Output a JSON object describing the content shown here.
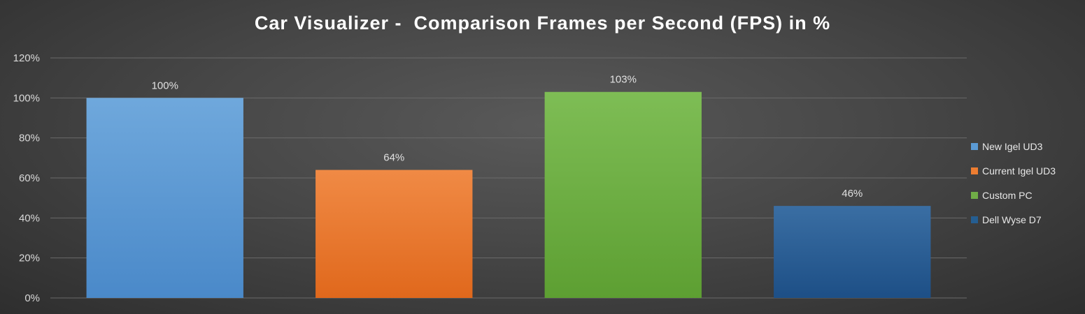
{
  "chart_data": {
    "type": "bar",
    "title": "Car Visualizer -  Comparison Frames per Second (FPS) in %",
    "xlabel": "",
    "ylabel": "",
    "ylim": [
      0,
      120
    ],
    "yticks": [
      0,
      20,
      40,
      60,
      80,
      100,
      120
    ],
    "ytick_labels": [
      "0%",
      "20%",
      "40%",
      "60%",
      "80%",
      "100%",
      "120%"
    ],
    "grid": true,
    "legend_position": "right",
    "series": [
      {
        "name": "New Igel UD3",
        "value": 100,
        "label": "100%",
        "color": "#5b9bd5"
      },
      {
        "name": "Current Igel UD3",
        "value": 64,
        "label": "64%",
        "color": "#ed7d31"
      },
      {
        "name": "Custom PC",
        "value": 103,
        "label": "103%",
        "color": "#70ad47"
      },
      {
        "name": "Dell Wyse D7",
        "value": 46,
        "label": "46%",
        "color": "#255e91"
      }
    ]
  }
}
